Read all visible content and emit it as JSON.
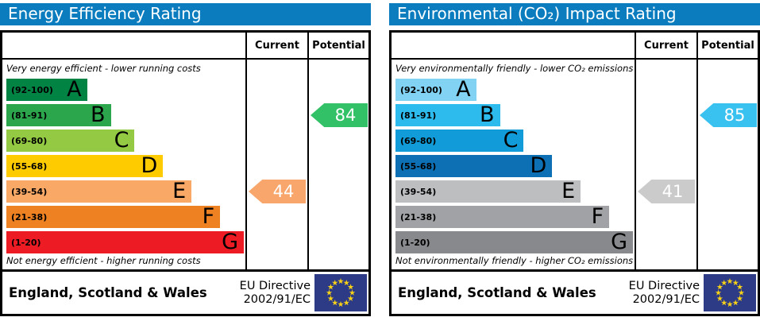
{
  "colors": {
    "title_bar": "#0b7dbf",
    "border": "#000000",
    "flag_blue": "#2d3a85",
    "flag_star": "#f7d117"
  },
  "panels": [
    {
      "title": "Energy Efficiency Rating",
      "header": {
        "current": "Current",
        "potential": "Potential"
      },
      "top_note": "Very energy efficient - lower running costs",
      "bottom_note": "Not energy efficient - higher running costs",
      "bands": [
        {
          "range": "(92-100)",
          "letter": "A",
          "color": "#008343",
          "width_pct": 34
        },
        {
          "range": "(81-91)",
          "letter": "B",
          "color": "#2ca64c",
          "width_pct": 44
        },
        {
          "range": "(69-80)",
          "letter": "C",
          "color": "#94ca43",
          "width_pct": 54
        },
        {
          "range": "(55-68)",
          "letter": "D",
          "color": "#fecb00",
          "width_pct": 66
        },
        {
          "range": "(39-54)",
          "letter": "E",
          "color": "#f9a865",
          "width_pct": 78
        },
        {
          "range": "(21-38)",
          "letter": "F",
          "color": "#ee8122",
          "width_pct": 90
        },
        {
          "range": "(1-20)",
          "letter": "G",
          "color": "#ed1c24",
          "width_pct": 100
        }
      ],
      "current": {
        "label": "44",
        "band_index": 4,
        "color": "#f8a66b"
      },
      "potential": {
        "label": "84",
        "band_index": 1,
        "color": "#33c168"
      },
      "footer": {
        "region": "England, Scotland & Wales",
        "directive_line1": "EU Directive",
        "directive_line2": "2002/91/EC"
      }
    },
    {
      "title": "Environmental (CO₂) Impact Rating",
      "header": {
        "current": "Current",
        "potential": "Potential"
      },
      "top_note": "Very environmentally friendly - lower CO₂ emissions",
      "bottom_note": "Not environmentally friendly - higher CO₂ emissions",
      "bands": [
        {
          "range": "(92-100)",
          "letter": "A",
          "color": "#82d2f4",
          "width_pct": 34
        },
        {
          "range": "(81-91)",
          "letter": "B",
          "color": "#2dbbee",
          "width_pct": 44
        },
        {
          "range": "(69-80)",
          "letter": "C",
          "color": "#119bd8",
          "width_pct": 54
        },
        {
          "range": "(55-68)",
          "letter": "D",
          "color": "#0d70b4",
          "width_pct": 66
        },
        {
          "range": "(39-54)",
          "letter": "E",
          "color": "#bcbec0",
          "width_pct": 78
        },
        {
          "range": "(21-38)",
          "letter": "F",
          "color": "#a0a2a5",
          "width_pct": 90
        },
        {
          "range": "(1-20)",
          "letter": "G",
          "color": "#87898c",
          "width_pct": 100
        }
      ],
      "current": {
        "label": "41",
        "band_index": 4,
        "color": "#cbcbcb"
      },
      "potential": {
        "label": "85",
        "band_index": 1,
        "color": "#39c1f0"
      },
      "footer": {
        "region": "England, Scotland & Wales",
        "directive_line1": "EU Directive",
        "directive_line2": "2002/91/EC"
      }
    }
  ],
  "chart_data": [
    {
      "type": "bar",
      "title": "Energy Efficiency Rating",
      "categories": [
        "A (92-100)",
        "B (81-91)",
        "C (69-80)",
        "D (55-68)",
        "E (39-54)",
        "F (21-38)",
        "G (1-20)"
      ],
      "band_lengths_pct": [
        34,
        44,
        54,
        66,
        78,
        90,
        100
      ],
      "series": [
        {
          "name": "Current",
          "value": 44,
          "band": "E"
        },
        {
          "name": "Potential",
          "value": 84,
          "band": "B"
        }
      ],
      "scale_range": [
        1,
        100
      ],
      "annotations": [
        "Very energy efficient - lower running costs",
        "Not energy efficient - higher running costs",
        "England, Scotland & Wales",
        "EU Directive 2002/91/EC"
      ]
    },
    {
      "type": "bar",
      "title": "Environmental (CO₂) Impact Rating",
      "categories": [
        "A (92-100)",
        "B (81-91)",
        "C (69-80)",
        "D (55-68)",
        "E (39-54)",
        "F (21-38)",
        "G (1-20)"
      ],
      "band_lengths_pct": [
        34,
        44,
        54,
        66,
        78,
        90,
        100
      ],
      "series": [
        {
          "name": "Current",
          "value": 41,
          "band": "E"
        },
        {
          "name": "Potential",
          "value": 85,
          "band": "B"
        }
      ],
      "scale_range": [
        1,
        100
      ],
      "annotations": [
        "Very environmentally friendly - lower CO₂ emissions",
        "Not environmentally friendly - higher CO₂ emissions",
        "England, Scotland & Wales",
        "EU Directive 2002/91/EC"
      ]
    }
  ]
}
